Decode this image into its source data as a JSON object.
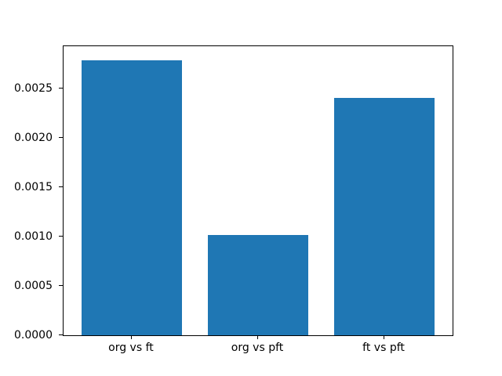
{
  "chart_data": {
    "type": "bar",
    "title": "",
    "xlabel": "",
    "ylabel": "",
    "categories": [
      "org vs ft",
      "org vs pft",
      "ft vs pft"
    ],
    "values": [
      0.00279,
      0.00102,
      0.00241
    ],
    "bar_color": "#1f77b4",
    "bar_width": 0.8,
    "xlim": [
      -0.54,
      2.54
    ],
    "ylim": [
      0,
      0.00293
    ],
    "yticks": [
      0.0,
      0.0005,
      0.001,
      0.0015,
      0.002,
      0.0025
    ],
    "ytick_labels": [
      "0.0000",
      "0.0005",
      "0.0010",
      "0.0015",
      "0.0020",
      "0.0025"
    ],
    "grid": false,
    "legend": "none",
    "background": "#ffffff",
    "axes_frame_color": "#000000",
    "text_color": "#000000"
  }
}
